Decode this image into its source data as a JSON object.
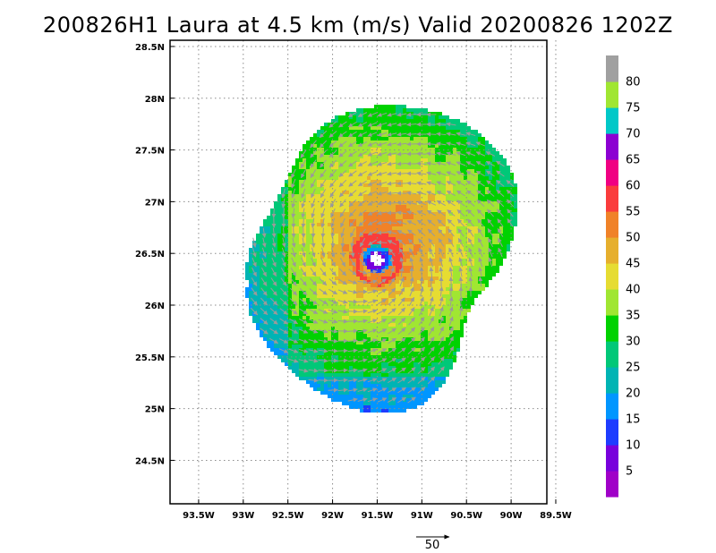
{
  "title": "200826H1 Laura at 4.5 km (m/s) Valid 20200826 1202Z",
  "axes": {
    "x_ticks": [
      "93.5W",
      "93W",
      "92.5W",
      "92W",
      "91.5W",
      "91W",
      "90.5W",
      "90W",
      "89.5W"
    ],
    "x_values": [
      -93.5,
      -93.0,
      -92.5,
      -92.0,
      -91.5,
      -91.0,
      -90.5,
      -90.0,
      -89.5
    ],
    "y_ticks": [
      "28.5N",
      "28N",
      "27.5N",
      "27N",
      "26.5N",
      "26N",
      "25.5N",
      "25N",
      "24.5N"
    ],
    "y_values": [
      28.5,
      28.0,
      27.5,
      27.0,
      26.5,
      26.0,
      25.5,
      25.0,
      24.5
    ],
    "lon_range": [
      -93.82,
      -89.6
    ],
    "lat_range": [
      24.08,
      28.56
    ],
    "grid": "dotted"
  },
  "storm_center": {
    "lon": -91.52,
    "lat": 26.46
  },
  "colorbar": {
    "labels": [
      "5",
      "10",
      "15",
      "20",
      "25",
      "30",
      "35",
      "40",
      "45",
      "50",
      "55",
      "60",
      "65",
      "70",
      "75",
      "80"
    ],
    "colors": [
      "#a000c8",
      "#7800dc",
      "#1e3cff",
      "#0096ff",
      "#00b4b4",
      "#00c878",
      "#00d200",
      "#a0e632",
      "#e6dc32",
      "#e6af2d",
      "#f08228",
      "#fa3c3c",
      "#f00082",
      "#8c00d2",
      "#00c8c8",
      "#a0e632",
      "#a0a0a0"
    ]
  },
  "reference_vector": {
    "label": "50"
  }
}
